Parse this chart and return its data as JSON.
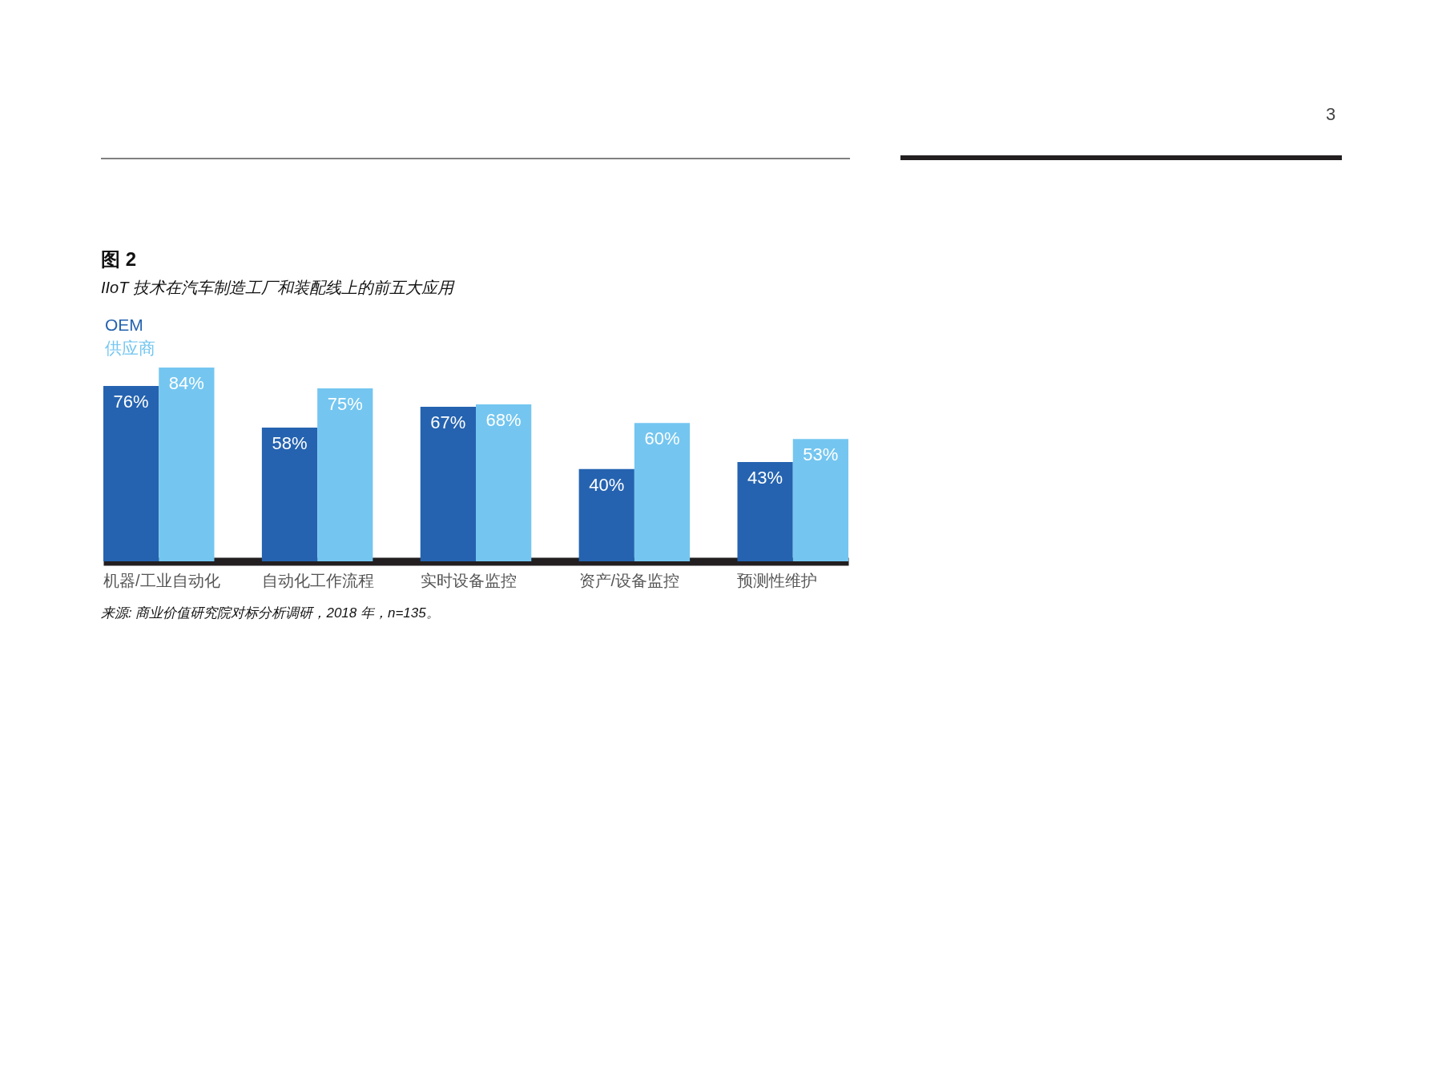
{
  "chart_data": {
    "type": "bar",
    "title": "图 2",
    "subtitle": "IIoT 技术在汽车制造工厂和装配线上的前五大应用",
    "categories": [
      "机器/工业自动化",
      "自动化工作流程",
      "实时设备监控",
      "资产/设备监控",
      "预测性维护"
    ],
    "series": [
      {
        "name": "OEM",
        "color": "#2563b0",
        "values": [
          76,
          58,
          67,
          40,
          43
        ],
        "value_labels": [
          "76%",
          "58%",
          "67%",
          "40%",
          "43%"
        ]
      },
      {
        "name": "供应商",
        "color": "#74c6f0",
        "values": [
          84,
          75,
          68,
          60,
          53
        ],
        "value_labels": [
          "84%",
          "75%",
          "68%",
          "60%",
          "53%"
        ]
      }
    ],
    "legend": "top left",
    "grid": false,
    "annotations": [
      "来源: 商业价值研究院对标分析调研，2018 年，n=135。",
      "3"
    ]
  }
}
